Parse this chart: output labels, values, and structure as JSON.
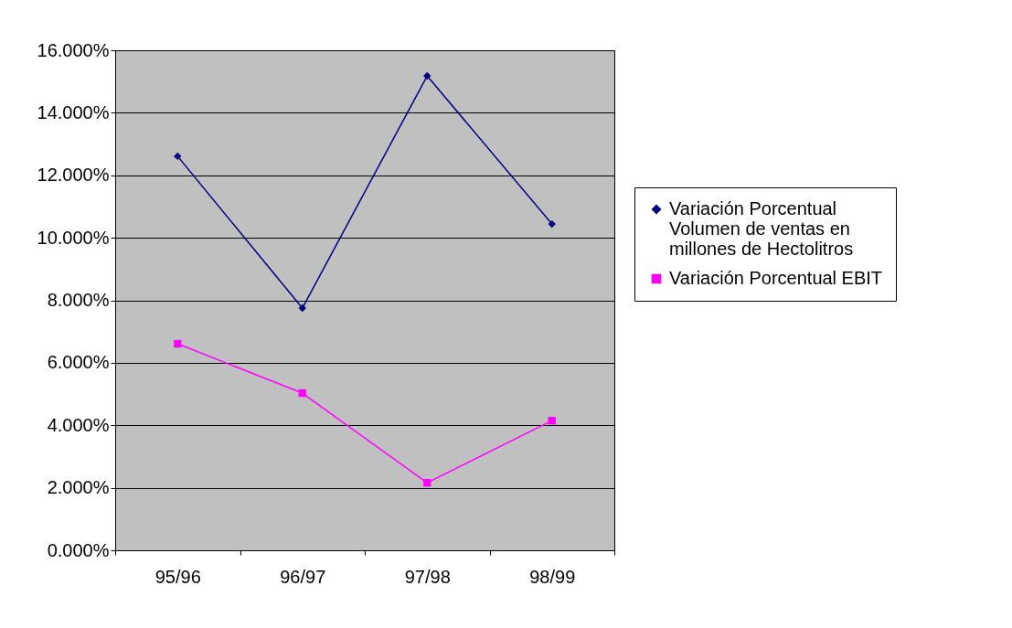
{
  "chart_data": {
    "type": "line",
    "categories": [
      "95/96",
      "96/97",
      "97/98",
      "98/99"
    ],
    "series": [
      {
        "name": "Variación Porcentual Volumen de ventas en millones de Hectolitros",
        "color": "#000080",
        "marker": "diamond",
        "values": [
          12.61,
          7.75,
          15.18,
          10.44
        ]
      },
      {
        "name": "Variación Porcentual EBIT",
        "color": "#ff00ff",
        "marker": "square",
        "values": [
          6.61,
          5.03,
          2.16,
          4.15
        ]
      }
    ],
    "ylim": [
      0,
      16
    ],
    "yticks": [
      {
        "value": 0,
        "label": "0.000%"
      },
      {
        "value": 2,
        "label": "2.000%"
      },
      {
        "value": 4,
        "label": "4.000%"
      },
      {
        "value": 6,
        "label": "6.000%"
      },
      {
        "value": 8,
        "label": "8.000%"
      },
      {
        "value": 10,
        "label": "10.000%"
      },
      {
        "value": 12,
        "label": "12.000%"
      },
      {
        "value": 14,
        "label": "14.000%"
      },
      {
        "value": 16,
        "label": "16.000%"
      }
    ],
    "grid": "y",
    "legend": "right",
    "line_style": "solid"
  }
}
